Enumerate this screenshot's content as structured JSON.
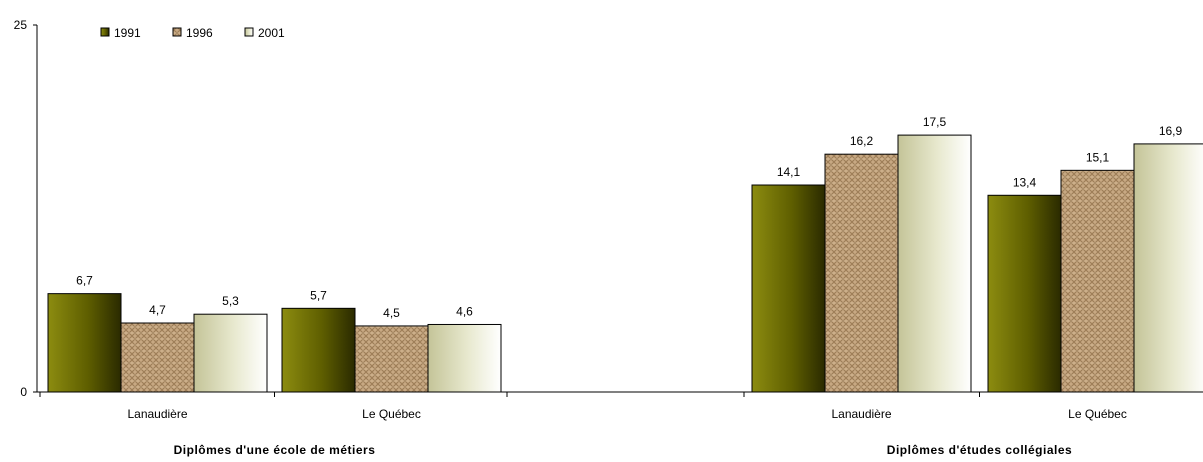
{
  "chart_data": {
    "type": "bar",
    "title": "",
    "xlabel": "",
    "ylabel": "",
    "ylim": [
      0,
      25
    ],
    "y_ticks": [
      "0",
      "25"
    ],
    "grid": false,
    "legend_position": "top-left",
    "groups": [
      {
        "label": "Diplômes d'une école de métiers",
        "categories": [
          "Lanaudière",
          "Le Québec"
        ]
      },
      {
        "label": "Diplômes d'études collégiales",
        "categories": [
          "Lanaudière",
          "Le Québec"
        ]
      }
    ],
    "series": [
      {
        "name": "1991",
        "color": "#6b6b00",
        "values": [
          6.7,
          5.7,
          14.1,
          13.4
        ],
        "labels": [
          "6,7",
          "5,7",
          "14,1",
          "13,4"
        ]
      },
      {
        "name": "1996",
        "color": "#c2a27a",
        "values": [
          4.7,
          4.5,
          16.2,
          15.1
        ],
        "labels": [
          "4,7",
          "4,5",
          "16,2",
          "15,1"
        ]
      },
      {
        "name": "2001",
        "color": "#e2e4c4",
        "values": [
          5.3,
          4.6,
          17.5,
          16.9
        ],
        "labels": [
          "5,3",
          "4,6",
          "17,5",
          "16,9"
        ]
      }
    ]
  }
}
